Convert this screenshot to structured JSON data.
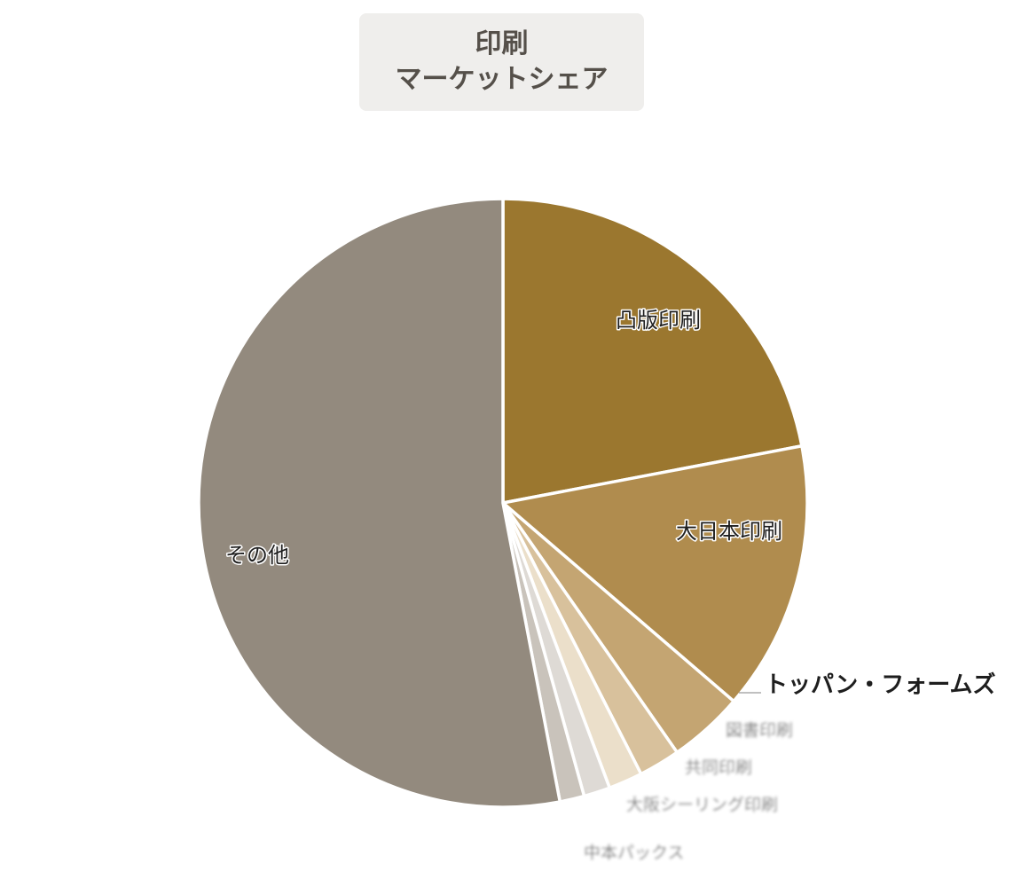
{
  "chart_data": {
    "type": "pie",
    "title": "印刷\nマーケットシェア",
    "title_lines": [
      "印刷",
      "マーケットシェア"
    ],
    "slices": [
      {
        "label": "凸版印刷",
        "value": 22.0,
        "color": "#9b772f"
      },
      {
        "label": "大日本印刷",
        "value": 14.3,
        "color": "#b08c4e"
      },
      {
        "label": "トッパン・フォームズ",
        "value": 4.0,
        "color": "#c4a572"
      },
      {
        "label": "図書印刷",
        "value": 2.2,
        "color": "#d8c19c"
      },
      {
        "label": "共同印刷",
        "value": 1.8,
        "color": "#ebdfca"
      },
      {
        "label": "大阪シーリング印刷",
        "value": 1.4,
        "color": "#dedad5"
      },
      {
        "label": "中本パックス",
        "value": 1.3,
        "color": "#c9c3bb"
      },
      {
        "label": "その他",
        "value": 53.0,
        "color": "#938a7e"
      }
    ],
    "legend": "none",
    "start_angle_deg": 0,
    "direction": "clockwise"
  }
}
